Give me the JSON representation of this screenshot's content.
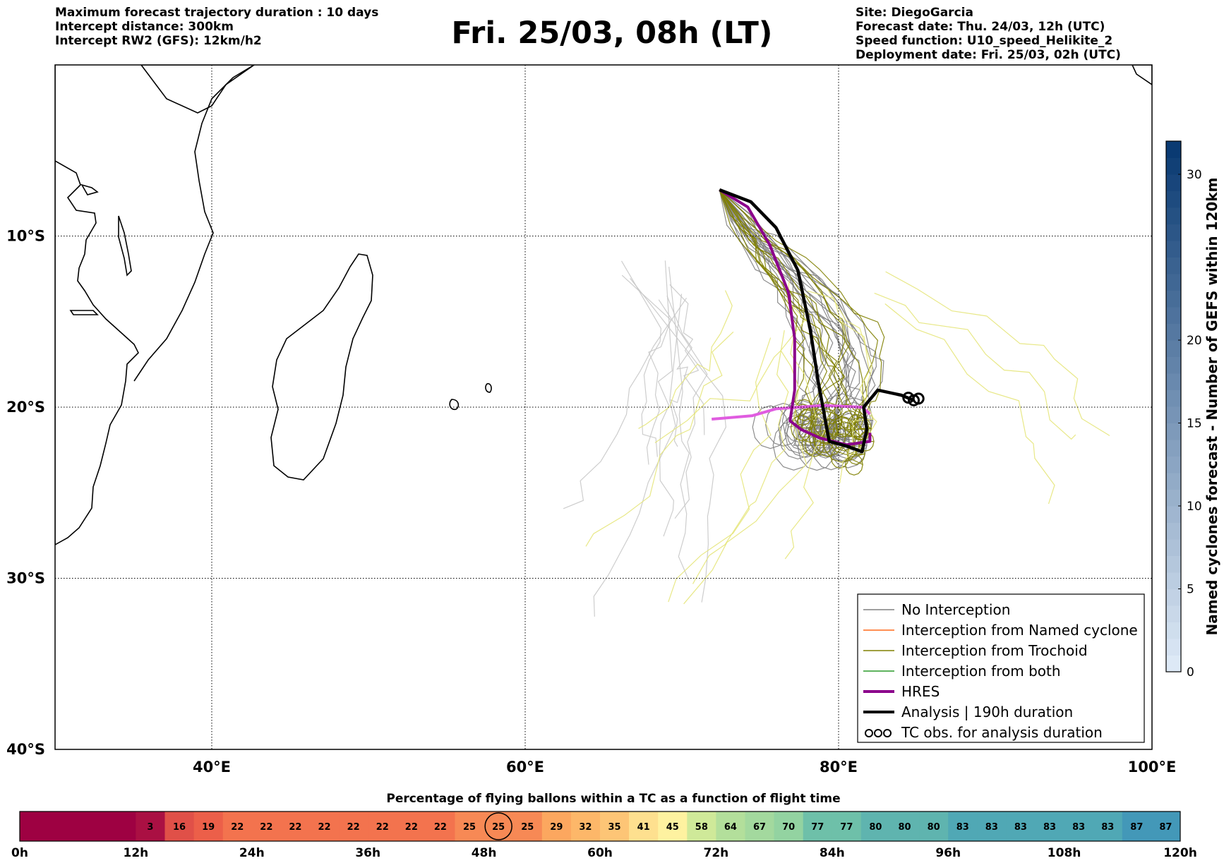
{
  "header": {
    "left": [
      "Maximum forecast trajectory duration : 10 days",
      "Intercept distance: 300km",
      "Intercept RW2 (GFS):  12km/h2"
    ],
    "title": "Fri. 25/03, 08h (LT)",
    "right": [
      "Site: DiegoGarcia",
      "Forecast date: Thu. 24/03, 12h (UTC)",
      "Speed function: U10_speed_Helikite_2",
      "Deployment date: Fri. 25/03, 02h (UTC)"
    ]
  },
  "map": {
    "lon_range": [
      30,
      100
    ],
    "lat_range": [
      -40,
      0
    ],
    "lon_ticks": [
      {
        "v": 40,
        "label": "40°E"
      },
      {
        "v": 60,
        "label": "60°E"
      },
      {
        "v": 80,
        "label": "80°E"
      },
      {
        "v": 100,
        "label": "100°E"
      }
    ],
    "lat_ticks": [
      {
        "v": -10,
        "label": "10°S"
      },
      {
        "v": -20,
        "label": "20°S"
      },
      {
        "v": -30,
        "label": "30°S"
      },
      {
        "v": -40,
        "label": "40°S"
      }
    ],
    "grid": "dotted"
  },
  "legend": {
    "placement": "lower-right",
    "items": [
      {
        "label": "No Interception",
        "color": "#808080",
        "style": "line-thin"
      },
      {
        "label": "Interception from Named cyclone",
        "color": "#ff6a1a",
        "style": "line-thin"
      },
      {
        "label": "Interception from Trochoid",
        "color": "#808000",
        "style": "line-thin"
      },
      {
        "label": "Interception from both",
        "color": "#2a9a2a",
        "style": "line-thin"
      },
      {
        "label": "HRES",
        "color": "#8b008b",
        "style": "line-thick"
      },
      {
        "label": "Analysis | 190h duration",
        "color": "#000000",
        "style": "line-thick"
      },
      {
        "label": "TC obs. for analysis duration",
        "color": "#000000",
        "style": "loops"
      }
    ]
  },
  "colorbar_right": {
    "label": "Named cyclones forecast - Number of GEFS within 120km",
    "range": [
      0,
      32
    ],
    "ticks": [
      0,
      5,
      10,
      15,
      20,
      30
    ],
    "color_low": "#dde9f6",
    "color_high": "#0a3a72"
  },
  "colorbar_bottom": {
    "title": "Percentage of flying ballons within a TC as a function of flight time",
    "cells": [
      null,
      null,
      null,
      null,
      3,
      16,
      19,
      22,
      22,
      22,
      22,
      22,
      22,
      22,
      22,
      25,
      25,
      25,
      29,
      32,
      35,
      41,
      45,
      58,
      64,
      67,
      70,
      77,
      77,
      80,
      80,
      80,
      83,
      83,
      83,
      83,
      83,
      83,
      87,
      87
    ],
    "highlight_index": 16,
    "ticks": [
      {
        "h": 0,
        "label": "0h"
      },
      {
        "h": 12,
        "label": "12h"
      },
      {
        "h": 24,
        "label": "24h"
      },
      {
        "h": 36,
        "label": "36h"
      },
      {
        "h": 48,
        "label": "48h"
      },
      {
        "h": 60,
        "label": "60h"
      },
      {
        "h": 72,
        "label": "72h"
      },
      {
        "h": 84,
        "label": "84h"
      },
      {
        "h": 96,
        "label": "96h"
      },
      {
        "h": 108,
        "label": "108h"
      },
      {
        "h": 120,
        "label": "120h"
      }
    ],
    "range_hours": [
      0,
      120
    ]
  },
  "chart_data": {
    "type": "line",
    "description_units": "longitude °E, latitude (negative = °S)",
    "site": {
      "lon": 72.4,
      "lat": -7.3
    },
    "series": [
      {
        "name": "HRES",
        "color": "#8b008b",
        "points": [
          [
            72.4,
            -7.3
          ],
          [
            74.2,
            -8.3
          ],
          [
            75.6,
            -10.5
          ],
          [
            76.8,
            -13.3
          ],
          [
            77.2,
            -16.0
          ],
          [
            77.2,
            -19.0
          ],
          [
            76.9,
            -20.8
          ],
          [
            77.6,
            -21.3
          ],
          [
            78.8,
            -21.8
          ],
          [
            80.5,
            -22.2
          ],
          [
            82.0,
            -22.0
          ],
          [
            82.0,
            -21.5
          ]
        ]
      },
      {
        "name": "Analysis | 190h duration",
        "color": "#000000",
        "points": [
          [
            72.4,
            -7.3
          ],
          [
            74.4,
            -8.0
          ],
          [
            76.0,
            -9.5
          ],
          [
            77.4,
            -12.0
          ],
          [
            78.2,
            -15.5
          ],
          [
            78.7,
            -18.5
          ],
          [
            79.4,
            -22.0
          ],
          [
            80.6,
            -22.3
          ],
          [
            81.5,
            -22.6
          ],
          [
            81.8,
            -21.3
          ],
          [
            81.6,
            -20.0
          ],
          [
            82.5,
            -19.0
          ],
          [
            84.0,
            -19.3
          ],
          [
            84.8,
            -19.6
          ]
        ]
      }
    ],
    "extra_series": [
      {
        "name": "HRES (late segment)",
        "color": "#e05ce0",
        "points": [
          [
            71.9,
            -20.7
          ],
          [
            74.5,
            -20.5
          ],
          [
            76.0,
            -20.1
          ],
          [
            77.5,
            -20.0
          ],
          [
            79.0,
            -19.9
          ],
          [
            81.5,
            -20.0
          ],
          [
            82.0,
            -20.4
          ]
        ]
      }
    ],
    "ensemble_groups": [
      {
        "group": "No Interception",
        "color": "#808080",
        "count": 20
      },
      {
        "group": "Interception from Trochoid",
        "color": "#808000",
        "count": 12
      },
      {
        "group": "GEFS members (light)",
        "color": "#c8c8c8",
        "count": 10
      },
      {
        "group": "GEFS members (yellow)",
        "color": "#e6e67a",
        "count": 12
      }
    ],
    "xlim": [
      30,
      100
    ],
    "ylim": [
      -40,
      0
    ]
  }
}
